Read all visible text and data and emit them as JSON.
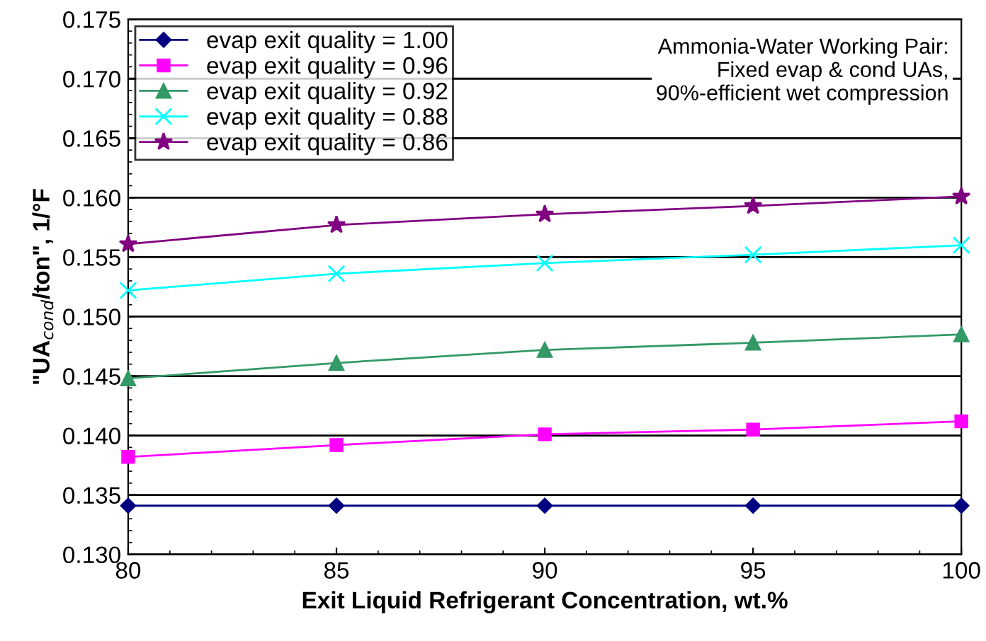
{
  "chart_data": {
    "type": "line",
    "xlabel": "Exit Liquid Refrigerant Concentration, wt.%",
    "ylabel": "\"UA$_{cond}$/ton\", 1/°F",
    "x": [
      80,
      85,
      90,
      95,
      100
    ],
    "series": [
      {
        "name": "evap exit quality = 1.00",
        "color": "#000080",
        "marker": "diamond",
        "values": [
          0.1341,
          0.1341,
          0.1341,
          0.1341,
          0.1341
        ]
      },
      {
        "name": "evap exit quality = 0.96",
        "color": "#ff00ff",
        "marker": "square",
        "values": [
          0.1382,
          0.1392,
          0.1401,
          0.1405,
          0.1412
        ]
      },
      {
        "name": "evap exit quality = 0.92",
        "color": "#339966",
        "marker": "triangle",
        "values": [
          0.1448,
          0.1461,
          0.1472,
          0.1478,
          0.1485
        ]
      },
      {
        "name": "evap exit quality = 0.88",
        "color": "#00ffff",
        "marker": "cross",
        "values": [
          0.1522,
          0.1536,
          0.1545,
          0.1552,
          0.156
        ]
      },
      {
        "name": "evap exit quality = 0.86",
        "color": "#800080",
        "marker": "star",
        "values": [
          0.1561,
          0.1577,
          0.1586,
          0.1593,
          0.1601
        ]
      }
    ],
    "xlim": [
      80,
      100
    ],
    "xticks": [
      80,
      85,
      90,
      95,
      100
    ],
    "ylim": [
      0.13,
      0.175
    ],
    "yticks": [
      {
        "value": 0.13,
        "label": "0.130"
      },
      {
        "value": 0.135,
        "label": "0.135"
      },
      {
        "value": 0.14,
        "label": "0.140"
      },
      {
        "value": 0.145,
        "label": "0.145"
      },
      {
        "value": 0.15,
        "label": "0.150"
      },
      {
        "value": 0.155,
        "label": "0.155"
      },
      {
        "value": 0.16,
        "label": "0.160"
      },
      {
        "value": 0.165,
        "label": "0.165"
      },
      {
        "value": 0.17,
        "label": "0.170"
      },
      {
        "value": 0.175,
        "label": "0.175"
      }
    ],
    "grid": "y",
    "legend": "top left",
    "line_style": "solid",
    "annotations": [
      "Ammonia-Water Working Pair:\nFixed evap & cond UAs,\n90%-efficient wet compression"
    ]
  }
}
